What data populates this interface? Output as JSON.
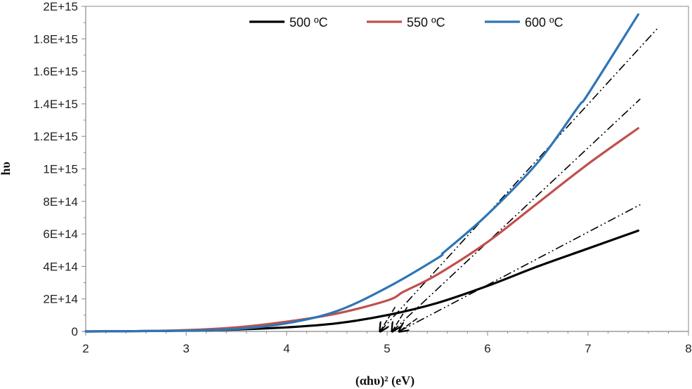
{
  "chart_data": {
    "type": "line",
    "title": "",
    "xlabel": "(αhυ)² (eV)",
    "ylabel": "hυ",
    "xlim": [
      2,
      8
    ],
    "ylim": [
      0,
      2000000000000000.0
    ],
    "x_ticks": [
      2,
      3,
      4,
      5,
      6,
      7,
      8
    ],
    "x_tick_labels": [
      "2",
      "3",
      "4",
      "5",
      "6",
      "7",
      "8"
    ],
    "y_ticks": [
      0,
      200000000000000.0,
      400000000000000.0,
      600000000000000.0,
      800000000000000.0,
      1000000000000000.0,
      1200000000000000.0,
      1400000000000000.0,
      1600000000000000.0,
      1800000000000000.0,
      2000000000000000.0
    ],
    "y_tick_labels": [
      "0",
      "2E+14",
      "4E+14",
      "6E+14",
      "8E+14",
      "1E+15",
      "1.2E+15",
      "1.4E+15",
      "1.6E+15",
      "1.8E+15",
      "2E+15"
    ],
    "grid": false,
    "legend_position": "top",
    "series": [
      {
        "name": "500 ºC",
        "color": "#000000",
        "x": [
          2.0,
          2.5,
          3.0,
          3.5,
          4.0,
          4.5,
          5.0,
          5.5,
          6.0,
          6.5,
          7.0,
          7.5
        ],
        "y": [
          0,
          2000000000000.0,
          5000000000000.0,
          12000000000000.0,
          25000000000000.0,
          50000000000000.0,
          100000000000000.0,
          175000000000000.0,
          280000000000000.0,
          400000000000000.0,
          510000000000000.0,
          620000000000000.0
        ]
      },
      {
        "name": "550 ºC",
        "color": "#c0504d",
        "x": [
          2.0,
          2.5,
          3.0,
          3.5,
          4.0,
          4.5,
          5.0,
          5.15,
          5.2,
          5.5,
          6.0,
          6.5,
          7.0,
          7.5
        ],
        "y": [
          0,
          2000000000000.0,
          8000000000000.0,
          25000000000000.0,
          60000000000000.0,
          110000000000000.0,
          190000000000000.0,
          240000000000000.0,
          255000000000000.0,
          350000000000000.0,
          550000000000000.0,
          790000000000000.0,
          1030000000000000.0,
          1250000000000000.0
        ]
      },
      {
        "name": "600 ºC",
        "color": "#2e75b6",
        "x": [
          2.0,
          2.5,
          3.0,
          3.5,
          4.0,
          4.5,
          5.0,
          5.5,
          5.55,
          5.6,
          6.0,
          6.5,
          6.9,
          7.0,
          7.5
        ],
        "y": [
          0,
          2000000000000.0,
          5000000000000.0,
          15000000000000.0,
          50000000000000.0,
          125000000000000.0,
          270000000000000.0,
          450000000000000.0,
          480000000000000.0,
          505000000000000.0,
          720000000000000.0,
          1040000000000000.0,
          1380000000000000.0,
          1460000000000000.0,
          1950000000000000.0
        ]
      }
    ],
    "fit_lines": [
      {
        "name": "tangent-500",
        "x": [
          5.12,
          7.52
        ],
        "y": [
          0,
          780000000000000.0
        ],
        "color": "#000000"
      },
      {
        "name": "tangent-550",
        "x": [
          5.05,
          7.52
        ],
        "y": [
          0,
          1430000000000000.0
        ],
        "color": "#000000"
      },
      {
        "name": "tangent-600",
        "x": [
          4.93,
          7.7
        ],
        "y": [
          0,
          1870000000000000.0
        ],
        "color": "#000000"
      }
    ],
    "annotations": [
      {
        "type": "arrow",
        "from": [
          5.08,
          150000000000000.0
        ],
        "to": [
          4.93,
          0
        ]
      },
      {
        "type": "arrow",
        "from": [
          5.2,
          150000000000000.0
        ],
        "to": [
          5.05,
          0
        ]
      },
      {
        "type": "arrow",
        "from": [
          5.3,
          80000000000000.0
        ],
        "to": [
          5.12,
          0
        ]
      }
    ]
  }
}
